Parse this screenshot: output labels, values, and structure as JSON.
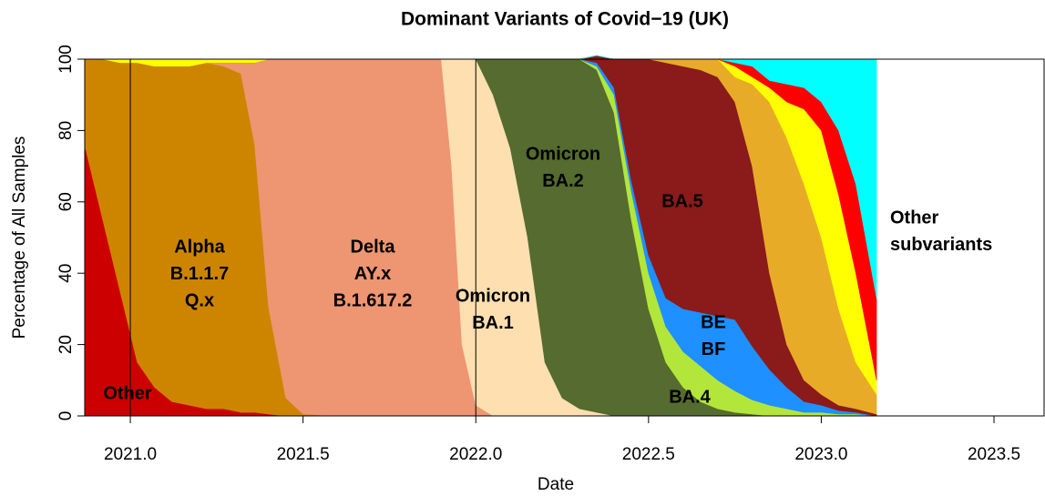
{
  "chart_data": {
    "type": "stacked_area",
    "title": "Dominant Variants of Covid−19 (UK)",
    "x_label": "Date",
    "y_label": "Percentage of All Samples",
    "xlim": [
      2020.868,
      2023.645
    ],
    "ylim": [
      0,
      100
    ],
    "xticks": [
      {
        "value": 2021,
        "label": "2021.0"
      },
      {
        "value": 2021.5,
        "label": "2021.5"
      },
      {
        "value": 2022,
        "label": "2022.0"
      },
      {
        "value": 2022.5,
        "label": "2022.5"
      },
      {
        "value": 2023,
        "label": "2023.0"
      },
      {
        "value": 2023.5,
        "label": "2023.5"
      }
    ],
    "yticks": [
      0,
      20,
      40,
      60,
      80,
      100
    ],
    "vlines": [
      2021,
      2022
    ],
    "x": [
      2020.87,
      2020.92,
      2020.97,
      2021.02,
      2021.07,
      2021.12,
      2021.17,
      2021.22,
      2021.27,
      2021.32,
      2021.36,
      2021.4,
      2021.45,
      2021.5,
      2021.6,
      2021.7,
      2021.8,
      2021.9,
      2021.93,
      2021.96,
      2022.0,
      2022.05,
      2022.1,
      2022.15,
      2022.2,
      2022.25,
      2022.3,
      2022.35,
      2022.4,
      2022.45,
      2022.5,
      2022.55,
      2022.6,
      2022.65,
      2022.7,
      2022.75,
      2022.8,
      2022.85,
      2022.9,
      2022.95,
      2023.0,
      2023.05,
      2023.1,
      2023.16
    ],
    "series": [
      {
        "name": [
          "Other"
        ],
        "color": "#cd0000",
        "values": [
          75,
          55,
          35,
          15,
          8,
          4,
          3,
          2,
          2,
          1,
          1,
          0.5,
          0,
          0,
          0,
          0,
          0,
          0,
          0,
          0,
          0,
          0,
          0,
          0,
          0,
          0,
          0,
          0,
          0,
          0,
          0,
          0,
          0,
          0,
          0,
          0,
          0,
          0,
          0,
          0,
          0,
          0,
          0,
          0
        ]
      },
      {
        "name": [
          "Alpha",
          "B.1.1.7",
          "Q.x"
        ],
        "color": "#cd8500",
        "values": [
          25,
          45,
          64,
          84,
          90,
          94,
          95,
          97,
          96,
          95,
          75,
          30,
          5,
          0.5,
          0,
          0,
          0,
          0,
          0,
          0,
          0,
          0,
          0,
          0,
          0,
          0,
          0,
          0,
          0,
          0,
          0,
          0,
          0,
          0,
          0,
          0,
          0,
          0,
          0,
          0,
          0,
          0,
          0,
          0
        ]
      },
      {
        "name": [
          "Delta",
          "AY.x",
          "B.1.617.2"
        ],
        "color": "#ee9572",
        "values": [
          0,
          0,
          0,
          0,
          0,
          0,
          0,
          0,
          1,
          3,
          23,
          69.5,
          95,
          99.5,
          100,
          100,
          100,
          100,
          70,
          20,
          3,
          0,
          0,
          0,
          0,
          0,
          0,
          0,
          0,
          0,
          0,
          0,
          0,
          0,
          0,
          0,
          0,
          0,
          0,
          0,
          0,
          0,
          0,
          0
        ]
      },
      {
        "name": [
          "Omicron",
          "BA.1"
        ],
        "color": "#fddfb0",
        "values": [
          0,
          0,
          0,
          0,
          0,
          0,
          0,
          0,
          0,
          0,
          0,
          0,
          0,
          0,
          0,
          0,
          0,
          0,
          30,
          80,
          97,
          90,
          75,
          50,
          15,
          5,
          2,
          1,
          0,
          0,
          0,
          0,
          0,
          0,
          0,
          0,
          0,
          0,
          0,
          0,
          0,
          0,
          0,
          0
        ]
      },
      {
        "name": [
          "Omicron",
          "BA.2"
        ],
        "color": "#556b2f",
        "values": [
          0,
          0,
          0,
          0,
          0,
          0,
          0,
          0,
          0,
          0,
          0,
          0,
          0,
          0,
          0,
          0,
          0,
          0,
          0,
          0,
          0,
          10,
          25,
          50,
          85,
          95,
          98,
          96,
          85,
          55,
          30,
          15,
          8,
          4,
          2,
          1,
          0.5,
          0,
          0,
          0,
          0,
          0,
          0,
          0
        ]
      },
      {
        "name": [
          "BA.4"
        ],
        "color": "#b3e63a",
        "values": [
          0,
          0,
          0,
          0,
          0,
          0,
          0,
          0,
          0,
          0,
          0,
          0,
          0,
          0,
          0,
          0,
          0,
          0,
          0,
          0,
          0,
          0,
          0,
          0,
          0,
          0,
          0,
          1,
          5,
          8,
          10,
          10,
          10,
          10,
          8,
          6,
          4,
          3,
          2,
          1,
          1,
          0.5,
          0.5,
          0
        ]
      },
      {
        "name": [
          "BE",
          "BF"
        ],
        "color": "#1e90ff",
        "values": [
          0,
          0,
          0,
          0,
          0,
          0,
          0,
          0,
          0,
          0,
          0,
          0,
          0,
          0,
          0,
          0,
          0,
          0,
          0,
          0,
          0,
          0,
          0,
          0,
          0,
          0,
          0,
          1,
          2,
          3,
          5,
          8,
          12,
          15,
          18,
          20,
          15,
          10,
          6,
          3,
          2,
          1,
          0.5,
          0
        ]
      },
      {
        "name": [
          "BA.5"
        ],
        "color": "#8b1a1a",
        "values": [
          0,
          0,
          0,
          0,
          0,
          0,
          0,
          0,
          0,
          0,
          0,
          0,
          0,
          0,
          0,
          0,
          0,
          0,
          0,
          0,
          0,
          0,
          0,
          0,
          0,
          0,
          0,
          2,
          8,
          34,
          55,
          66,
          68,
          68,
          67,
          61,
          50.5,
          27,
          12,
          6,
          3,
          1.5,
          1,
          0.5
        ]
      },
      {
        "color": "#e8ab28",
        "values": [
          0,
          0,
          0,
          0,
          0,
          0,
          0,
          0,
          0,
          0,
          0,
          0,
          0,
          0,
          0,
          0,
          0,
          0,
          0,
          0,
          0,
          0,
          0,
          0,
          0,
          0,
          0,
          0,
          0,
          0,
          0,
          1,
          2,
          3,
          5,
          7,
          23,
          48,
          58,
          55,
          44,
          27,
          13,
          5.5
        ]
      },
      {
        "color": "#ffff00",
        "values": [
          0,
          0,
          1,
          1,
          2,
          2,
          2,
          1,
          1,
          1,
          1,
          0,
          0,
          0,
          0,
          0,
          0,
          0,
          0,
          0,
          0,
          0,
          0,
          0,
          0,
          0,
          0,
          0,
          0,
          0,
          0,
          0,
          0,
          0,
          0,
          3,
          2,
          4,
          10,
          21,
          30,
          32,
          25,
          4
        ]
      },
      {
        "color": "#ff0000",
        "values": [
          0,
          0,
          0,
          0,
          0,
          0,
          0,
          0,
          0,
          0,
          0,
          0,
          0,
          0,
          0,
          0,
          0,
          0,
          0,
          0,
          0,
          0,
          0,
          0,
          0,
          0,
          0,
          0,
          0,
          0,
          0,
          0,
          0,
          0,
          0,
          1,
          3,
          2,
          5,
          6,
          8,
          18,
          25,
          23
        ]
      },
      {
        "name": [
          "Other",
          "subvariants"
        ],
        "color": "#00ffff",
        "values": [
          0,
          0,
          0,
          0,
          0,
          0,
          0,
          0,
          0,
          0,
          0,
          0,
          0,
          0,
          0,
          0,
          0,
          0,
          0,
          0,
          0,
          0,
          0,
          0,
          0,
          0,
          0,
          0,
          0,
          0,
          0,
          0,
          0,
          0,
          0,
          1,
          2,
          6,
          7,
          8,
          12,
          20,
          35,
          67
        ]
      }
    ]
  }
}
